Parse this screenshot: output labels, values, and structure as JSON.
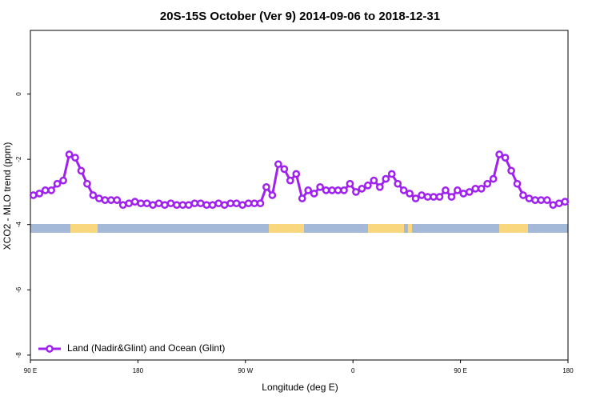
{
  "chart_data": {
    "type": "line",
    "title": "20S-15S October (Ver 9)   2014-09-06 to 2018-12-31",
    "x_label": "Longitude (deg E)",
    "y_label": "XCO2 - MLO trend (ppm)",
    "legend_position": "bottom-left",
    "xlim": [
      90,
      540
    ],
    "xticks": [
      {
        "value": 90,
        "label": "90 E"
      },
      {
        "value": 180,
        "label": "180"
      },
      {
        "value": 270,
        "label": "90 W"
      },
      {
        "value": 360,
        "label": "0"
      },
      {
        "value": 450,
        "label": "90 E"
      },
      {
        "value": 540,
        "label": "180"
      }
    ],
    "ylim": [
      -8.15,
      1.95
    ],
    "yticks": [
      -8,
      -6,
      -4,
      -2,
      0
    ],
    "x": [
      92.5,
      97.5,
      102.5,
      107.5,
      112.5,
      117.5,
      122.5,
      127.5,
      132.5,
      137.5,
      142.5,
      147.5,
      152.5,
      157.5,
      162.5,
      167.5,
      172.5,
      177.5,
      182.5,
      187.5,
      192.5,
      197.5,
      202.5,
      207.5,
      212.5,
      217.5,
      222.5,
      227.5,
      232.5,
      237.5,
      242.5,
      247.5,
      252.5,
      257.5,
      262.5,
      267.5,
      272.5,
      277.5,
      282.5,
      287.5,
      292.5,
      297.5,
      302.5,
      307.5,
      312.5,
      317.5,
      322.5,
      327.5,
      332.5,
      337.5,
      342.5,
      347.5,
      352.5,
      357.5,
      362.5,
      367.5,
      372.5,
      377.5,
      382.5,
      387.5,
      392.5,
      397.5,
      402.5,
      407.5,
      412.5,
      417.5,
      422.5,
      427.5,
      432.5,
      437.5,
      442.5,
      447.5,
      452.5,
      457.5,
      462.5,
      467.5,
      472.5,
      477.5,
      482.5,
      487.5,
      492.5,
      497.5,
      502.5,
      507.5,
      512.5,
      517.5,
      522.5,
      527.5,
      532.5,
      537.5
    ],
    "series": [
      {
        "name": "Land (Nadir&Glint) and Ocean (Glint)",
        "color": "#a020f0",
        "values": [
          -3.1,
          -3.05,
          -2.95,
          -2.95,
          -2.75,
          -2.65,
          -1.85,
          -1.95,
          -2.35,
          -2.75,
          -3.1,
          -3.2,
          -3.25,
          -3.25,
          -3.25,
          -3.4,
          -3.35,
          -3.3,
          -3.35,
          -3.35,
          -3.4,
          -3.35,
          -3.4,
          -3.35,
          -3.4,
          -3.4,
          -3.4,
          -3.35,
          -3.35,
          -3.4,
          -3.4,
          -3.35,
          -3.4,
          -3.35,
          -3.35,
          -3.4,
          -3.35,
          -3.35,
          -3.35,
          -2.85,
          -3.1,
          -2.15,
          -2.3,
          -2.65,
          -2.45,
          -3.2,
          -2.95,
          -3.05,
          -2.85,
          -2.95,
          -2.95,
          -2.95,
          -2.95,
          -2.75,
          -3.0,
          -2.9,
          -2.8,
          -2.65,
          -2.85,
          -2.6,
          -2.45,
          -2.75,
          -2.95,
          -3.05,
          -3.2,
          -3.1,
          -3.15,
          -3.15,
          -3.15,
          -2.95,
          -3.15,
          -2.95,
          -3.05,
          -3.0,
          -2.9,
          -2.9,
          -2.75,
          -2.6,
          -1.85,
          -1.95,
          -2.35,
          -2.75,
          -3.1,
          -3.2,
          -3.25,
          -3.25,
          -3.25,
          -3.4,
          -3.35,
          -3.3
        ]
      }
    ]
  }
}
